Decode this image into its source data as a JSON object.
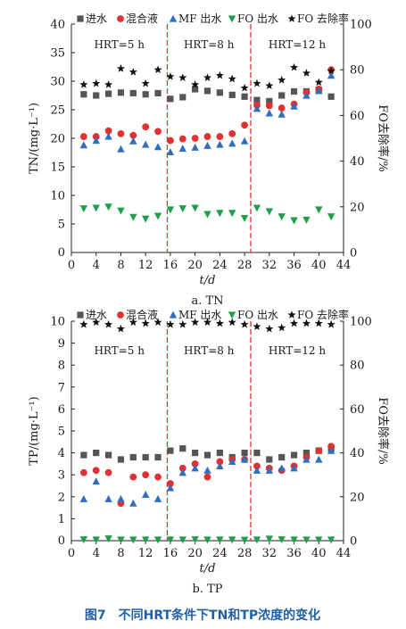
{
  "caption": "图7　不同HRT条件下TN和TP浓度的变化",
  "colors": {
    "influent": "#555555",
    "mixed": "#e03030",
    "mf": "#2e6fbd",
    "fo_eff": "#1ea04a",
    "removal": "#111111",
    "divider": "#e03030"
  },
  "legend": [
    "进水",
    "混合液",
    "MF 出水",
    "FO 出水",
    "FO 去除率"
  ],
  "hrt_labels": [
    "HRT=5 h",
    "HRT=8 h",
    "HRT=12 h"
  ],
  "dividers_x": [
    15.5,
    29
  ],
  "chart_data": [
    {
      "type": "scatter",
      "subtitle": "a. TN",
      "xlabel": "t/d",
      "ylabel": "TN/(mg·L⁻¹)",
      "y2label": "FO去除率/%",
      "xlim": [
        0,
        44
      ],
      "ylim": [
        0,
        40
      ],
      "y2lim": [
        0,
        100
      ],
      "xticks": [
        0,
        4,
        8,
        12,
        16,
        20,
        24,
        28,
        32,
        36,
        40,
        44
      ],
      "yticks": [
        5,
        10,
        15,
        20,
        25,
        30,
        35,
        40
      ],
      "y2ticks": [
        0,
        20,
        40,
        60,
        80,
        100
      ],
      "x": [
        2,
        4,
        6,
        8,
        10,
        12,
        14,
        16,
        18,
        20,
        22,
        24,
        26,
        28,
        30,
        32,
        34,
        36,
        38,
        40,
        42
      ],
      "series": [
        {
          "name": "进水",
          "axis": "left",
          "values": [
            27.7,
            27.5,
            27.8,
            28.0,
            27.9,
            27.7,
            27.9,
            26.9,
            27.2,
            28.6,
            28.3,
            28.0,
            27.6,
            27.3,
            26.7,
            26.5,
            27.5,
            28.2,
            28.2,
            28.5,
            27.3
          ]
        },
        {
          "name": "混合液",
          "axis": "left",
          "values": [
            20.3,
            20.3,
            21.3,
            20.8,
            20.5,
            22.0,
            21.2,
            19.6,
            19.9,
            20.0,
            20.3,
            20.3,
            20.8,
            22.3,
            25.8,
            25.7,
            25.3,
            26.0,
            28.0,
            28.6,
            32.0
          ]
        },
        {
          "name": "MF 出水",
          "axis": "left",
          "values": [
            18.8,
            19.6,
            20.3,
            18.1,
            19.5,
            18.9,
            18.5,
            17.6,
            18.2,
            18.4,
            18.7,
            18.9,
            19.1,
            19.5,
            25.2,
            24.4,
            24.2,
            25.6,
            27.5,
            28.3,
            31.0
          ]
        },
        {
          "name": "FO 出水",
          "axis": "left",
          "values": [
            7.7,
            7.8,
            8.0,
            7.3,
            6.2,
            5.9,
            6.4,
            7.5,
            7.7,
            7.8,
            6.7,
            6.9,
            6.9,
            6.0,
            7.8,
            7.2,
            6.3,
            5.6,
            5.7,
            7.5,
            6.3
          ]
        },
        {
          "name": "FO 去除率",
          "axis": "right",
          "values": [
            73.5,
            74.0,
            73.5,
            80.5,
            79.0,
            74.0,
            80.0,
            77.0,
            76.5,
            73.5,
            76.5,
            77.5,
            76.0,
            72.0,
            74.0,
            73.0,
            75.5,
            81.0,
            78.5,
            74.5,
            79.5
          ]
        }
      ]
    },
    {
      "type": "scatter",
      "subtitle": "b. TP",
      "xlabel": "t/d",
      "ylabel": "TP/(mg·L⁻¹)",
      "y2label": "FO去除率/%",
      "xlim": [
        0,
        44
      ],
      "ylim": [
        0,
        10
      ],
      "y2lim": [
        0,
        100
      ],
      "xticks": [
        0,
        4,
        8,
        12,
        16,
        20,
        24,
        28,
        32,
        36,
        40,
        44
      ],
      "yticks": [
        1,
        2,
        3,
        4,
        5,
        6,
        7,
        8,
        9,
        10
      ],
      "y2ticks": [
        0,
        20,
        40,
        60,
        80,
        100
      ],
      "x": [
        2,
        4,
        6,
        8,
        10,
        12,
        14,
        16,
        18,
        20,
        22,
        24,
        26,
        28,
        30,
        32,
        34,
        36,
        38,
        40,
        42
      ],
      "series": [
        {
          "name": "进水",
          "axis": "left",
          "values": [
            3.9,
            4.0,
            3.9,
            3.7,
            3.8,
            3.8,
            3.8,
            4.1,
            4.2,
            4.0,
            3.9,
            4.0,
            3.8,
            4.0,
            4.0,
            3.7,
            3.8,
            3.9,
            4.0,
            4.1,
            4.2
          ]
        },
        {
          "name": "混合液",
          "axis": "left",
          "values": [
            3.1,
            3.2,
            3.1,
            1.7,
            2.9,
            3.0,
            2.9,
            2.6,
            3.3,
            3.5,
            2.9,
            3.6,
            3.7,
            3.7,
            3.4,
            3.3,
            3.2,
            3.4,
            3.8,
            4.1,
            4.3
          ]
        },
        {
          "name": "MF 出水",
          "axis": "left",
          "values": [
            1.9,
            2.7,
            1.9,
            1.9,
            1.7,
            2.1,
            1.9,
            2.4,
            3.1,
            3.3,
            3.2,
            3.4,
            3.6,
            3.7,
            3.2,
            3.2,
            3.3,
            3.3,
            3.7,
            3.7,
            4.1
          ]
        },
        {
          "name": "FO 出水",
          "axis": "left",
          "values": [
            0.05,
            0.04,
            0.09,
            0.04,
            0.04,
            0.04,
            0.04,
            0.04,
            0.04,
            0.05,
            0.04,
            0.04,
            0.04,
            0.03,
            0.04,
            0.08,
            0.05,
            0.04,
            0.04,
            0.04,
            0.04
          ]
        },
        {
          "name": "FO 去除率",
          "axis": "right",
          "values": [
            98.5,
            99.5,
            98.5,
            96.5,
            99.5,
            99.0,
            99.5,
            98.5,
            98.5,
            99.5,
            99.5,
            99.0,
            99.5,
            98.5,
            97.5,
            96.5,
            97.0,
            99.0,
            99.0,
            99.0,
            98.5
          ]
        }
      ]
    }
  ]
}
